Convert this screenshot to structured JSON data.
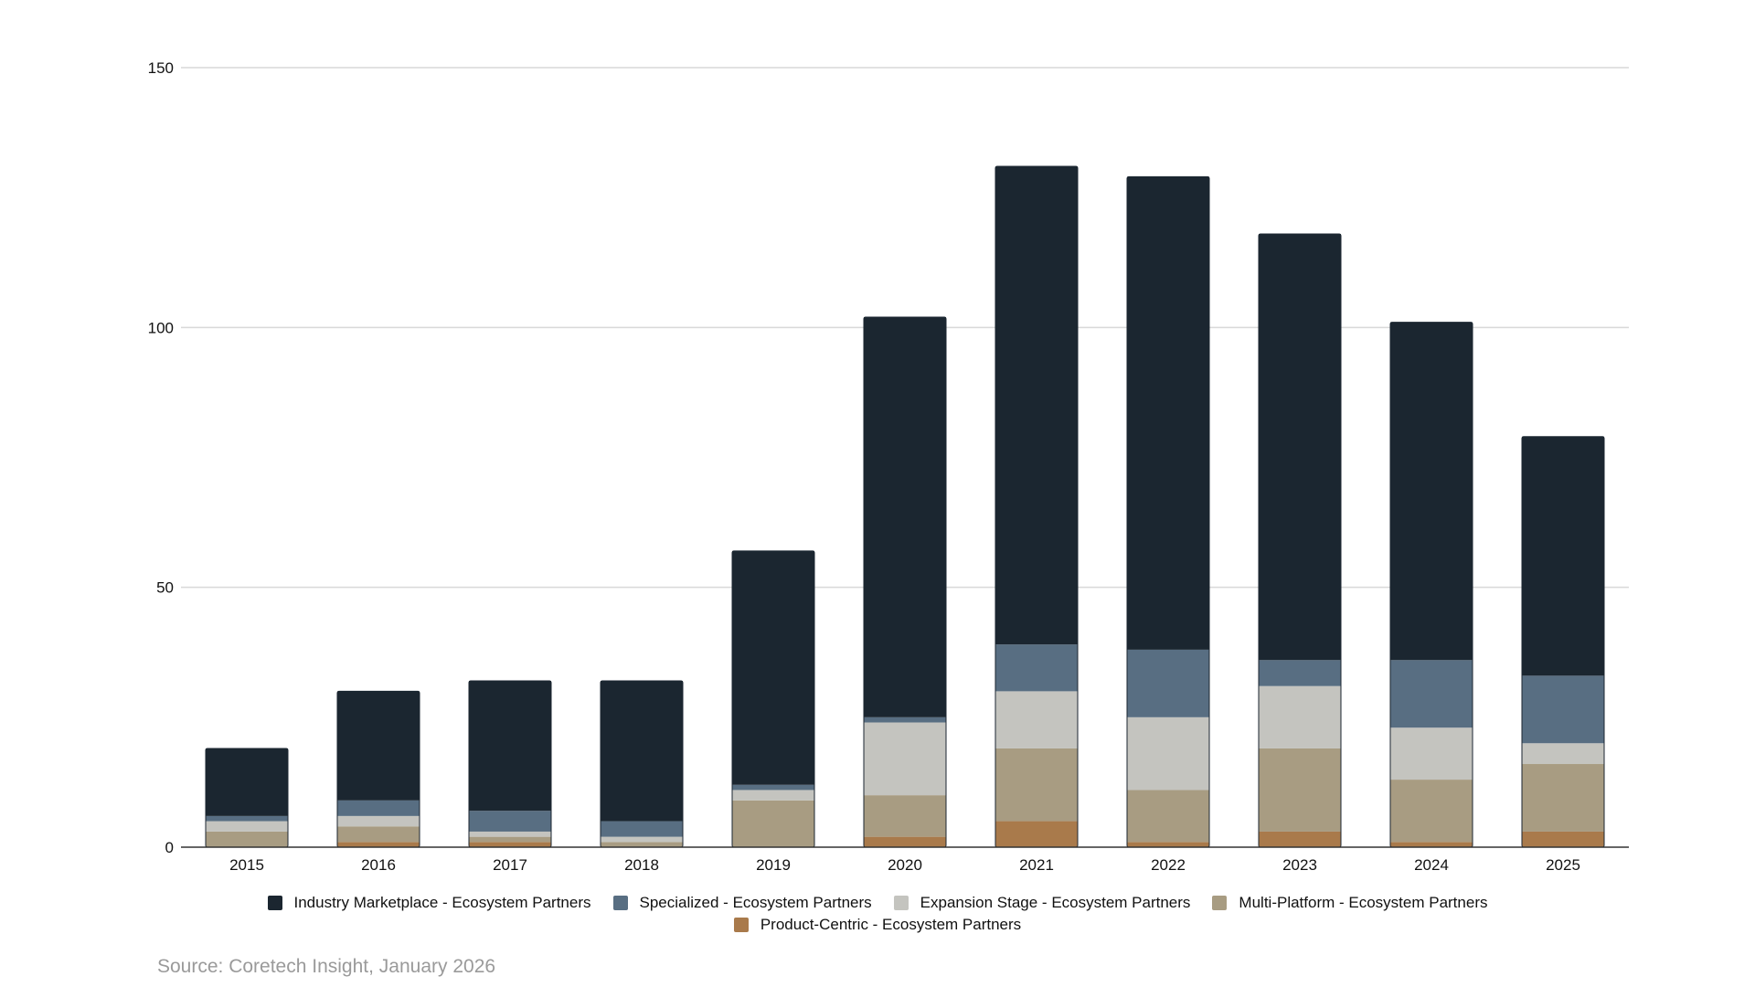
{
  "chart_data": {
    "type": "bar",
    "stacked": true,
    "categories": [
      "2015",
      "2016",
      "2017",
      "2018",
      "2019",
      "2020",
      "2021",
      "2022",
      "2023",
      "2024",
      "2025"
    ],
    "series": [
      {
        "name": "Product-Centric - Ecosystem Partners",
        "color": "#a97a4b",
        "values": [
          0,
          1,
          1,
          0,
          0,
          2,
          5,
          1,
          3,
          1,
          3
        ]
      },
      {
        "name": "Multi-Platform - Ecosystem Partners",
        "color": "#a89c82",
        "values": [
          3,
          3,
          1,
          1,
          9,
          8,
          14,
          10,
          16,
          12,
          13
        ]
      },
      {
        "name": "Expansion Stage - Ecosystem Partners",
        "color": "#c4c4bf",
        "values": [
          2,
          2,
          1,
          1,
          2,
          14,
          11,
          14,
          12,
          10,
          4
        ]
      },
      {
        "name": "Specialized - Ecosystem Partners",
        "color": "#586e82",
        "values": [
          1,
          3,
          4,
          3,
          1,
          1,
          9,
          13,
          5,
          13,
          13
        ]
      },
      {
        "name": "Industry Marketplace - Ecosystem Partners",
        "color": "#1b2630",
        "values": [
          13,
          21,
          25,
          27,
          45,
          77,
          92,
          91,
          82,
          65,
          46
        ]
      }
    ],
    "legend_order": [
      "Industry Marketplace - Ecosystem Partners",
      "Specialized - Ecosystem Partners",
      "Expansion Stage - Ecosystem Partners",
      "Multi-Platform - Ecosystem Partners",
      "Product-Centric - Ecosystem Partners"
    ],
    "yticks": [
      0,
      50,
      100,
      150
    ],
    "ylim": [
      0,
      150
    ],
    "grid": true,
    "legend_position": "bottom-center",
    "title": "",
    "xlabel": "",
    "ylabel": ""
  },
  "source": "Source: Coretech Insight, January 2026",
  "colors": {
    "grid": "#d9d9d9",
    "axis": "#333333"
  }
}
